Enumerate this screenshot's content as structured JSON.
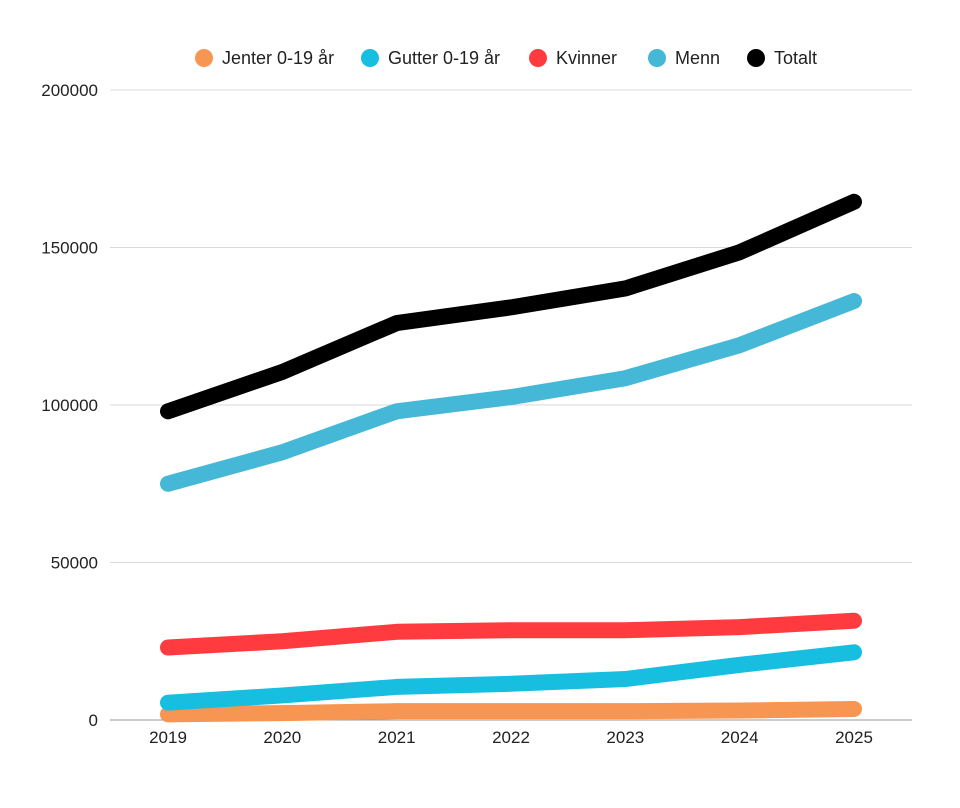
{
  "chart_data": {
    "type": "line",
    "title": "",
    "xlabel": "",
    "ylabel": "",
    "categories": [
      "2019",
      "2020",
      "2021",
      "2022",
      "2023",
      "2024",
      "2025"
    ],
    "ylim": [
      0,
      200000
    ],
    "yticks": [
      0,
      50000,
      100000,
      150000,
      200000
    ],
    "grid": true,
    "legend_position": "top-center",
    "series": [
      {
        "name": "Jenter 0-19 år",
        "color": "#F79552",
        "values": [
          1800,
          2200,
          2800,
          2800,
          2800,
          3000,
          3500
        ]
      },
      {
        "name": "Gutter 0-19 år",
        "color": "#17BEE0",
        "values": [
          5500,
          7800,
          10500,
          11500,
          13000,
          17500,
          21500
        ]
      },
      {
        "name": "Kvinner",
        "color": "#FF3B3F",
        "values": [
          23000,
          25000,
          28000,
          28500,
          28500,
          29500,
          31500
        ]
      },
      {
        "name": "Menn",
        "color": "#44B8D6",
        "values": [
          75000,
          85000,
          98000,
          102500,
          108500,
          119000,
          133000
        ]
      },
      {
        "name": "Totalt",
        "color": "#000000",
        "values": [
          98000,
          110500,
          126000,
          131000,
          137000,
          148500,
          164500
        ]
      }
    ]
  }
}
